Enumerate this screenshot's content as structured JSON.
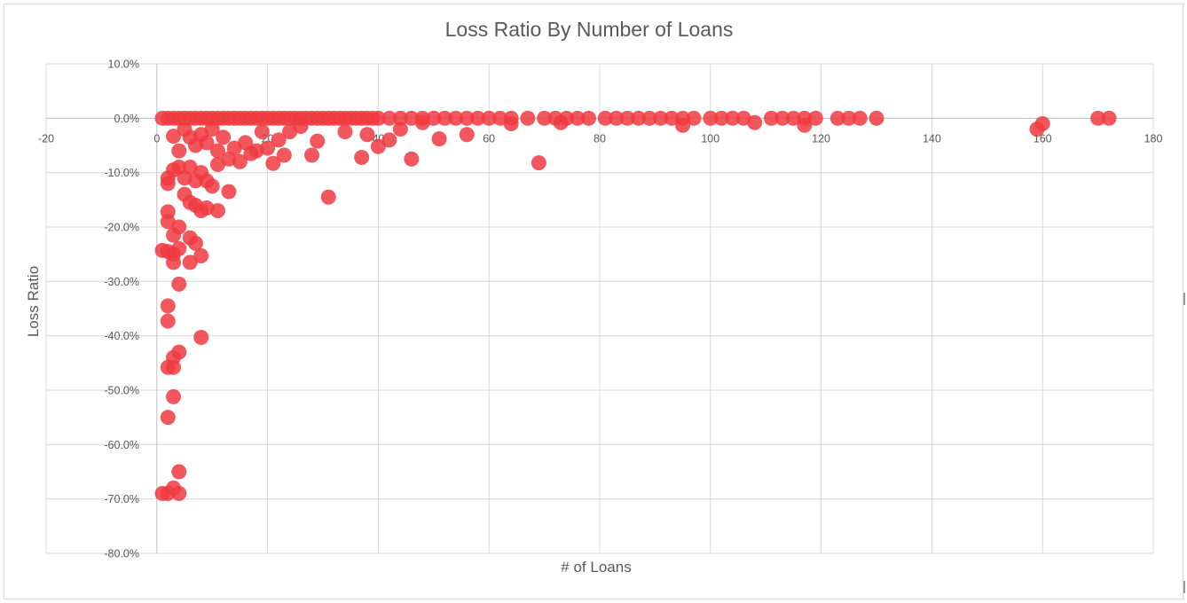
{
  "chart_data": {
    "type": "scatter",
    "title": "Loss Ratio By Number of Loans",
    "xlabel": "# of Loans",
    "ylabel": "Loss Ratio",
    "xlim": [
      -20,
      180
    ],
    "ylim": [
      -0.8,
      0.1
    ],
    "x_ticks": [
      "-20",
      "0",
      "20",
      "40",
      "60",
      "80",
      "100",
      "120",
      "140",
      "160",
      "180"
    ],
    "y_ticks": [
      "10.0%",
      "0.0%",
      "-10.0%",
      "-20.0%",
      "-30.0%",
      "-40.0%",
      "-50.0%",
      "-60.0%",
      "-70.0%",
      "-80.0%"
    ],
    "grid": true,
    "legend": "none",
    "marker_color": "#ee3a3f",
    "series": [
      {
        "points": [
          [
            1,
            0
          ],
          [
            2,
            0
          ],
          [
            3,
            0
          ],
          [
            4,
            0
          ],
          [
            5,
            0
          ],
          [
            6,
            0
          ],
          [
            7,
            0
          ],
          [
            8,
            0
          ],
          [
            9,
            0
          ],
          [
            10,
            0
          ],
          [
            11,
            0
          ],
          [
            12,
            0
          ],
          [
            13,
            0
          ],
          [
            14,
            0
          ],
          [
            15,
            0
          ],
          [
            16,
            0
          ],
          [
            17,
            0
          ],
          [
            18,
            0
          ],
          [
            19,
            0
          ],
          [
            20,
            0
          ],
          [
            21,
            0
          ],
          [
            22,
            0
          ],
          [
            23,
            0
          ],
          [
            24,
            0
          ],
          [
            25,
            0
          ],
          [
            26,
            0
          ],
          [
            27,
            0
          ],
          [
            28,
            0
          ],
          [
            29,
            0
          ],
          [
            30,
            0
          ],
          [
            31,
            0
          ],
          [
            32,
            0
          ],
          [
            33,
            0
          ],
          [
            34,
            0
          ],
          [
            35,
            0
          ],
          [
            36,
            0
          ],
          [
            37,
            0
          ],
          [
            38,
            0
          ],
          [
            39,
            0
          ],
          [
            40,
            0
          ],
          [
            42,
            0
          ],
          [
            44,
            0
          ],
          [
            46,
            0
          ],
          [
            48,
            0
          ],
          [
            50,
            0
          ],
          [
            52,
            0
          ],
          [
            54,
            0
          ],
          [
            56,
            0
          ],
          [
            58,
            0
          ],
          [
            60,
            0
          ],
          [
            62,
            0
          ],
          [
            64,
            0
          ],
          [
            67,
            0
          ],
          [
            70,
            0
          ],
          [
            72,
            0
          ],
          [
            74,
            0
          ],
          [
            76,
            0
          ],
          [
            78,
            0
          ],
          [
            81,
            0
          ],
          [
            83,
            0
          ],
          [
            85,
            0
          ],
          [
            87,
            0
          ],
          [
            89,
            0
          ],
          [
            91,
            0
          ],
          [
            93,
            0
          ],
          [
            95,
            0
          ],
          [
            97,
            0
          ],
          [
            100,
            0
          ],
          [
            102,
            0
          ],
          [
            104,
            0
          ],
          [
            106,
            0
          ],
          [
            111,
            0
          ],
          [
            113,
            0
          ],
          [
            115,
            0
          ],
          [
            117,
            0
          ],
          [
            119,
            0
          ],
          [
            123,
            0
          ],
          [
            125,
            0
          ],
          [
            127,
            0
          ],
          [
            130,
            0
          ],
          [
            170,
            0
          ],
          [
            172,
            0
          ],
          [
            3,
            -0.033
          ],
          [
            4,
            -0.06
          ],
          [
            5,
            -0.02
          ],
          [
            6,
            -0.035
          ],
          [
            7,
            -0.05
          ],
          [
            8,
            -0.03
          ],
          [
            9,
            -0.045
          ],
          [
            10,
            -0.02
          ],
          [
            11,
            -0.06
          ],
          [
            12,
            -0.035
          ],
          [
            13,
            -0.075
          ],
          [
            14,
            -0.055
          ],
          [
            15,
            -0.08
          ],
          [
            16,
            -0.045
          ],
          [
            17,
            -0.065
          ],
          [
            18,
            -0.06
          ],
          [
            19,
            -0.025
          ],
          [
            20,
            -0.055
          ],
          [
            21,
            -0.083
          ],
          [
            22,
            -0.04
          ],
          [
            23,
            -0.068
          ],
          [
            24,
            -0.025
          ],
          [
            26,
            -0.015
          ],
          [
            28,
            -0.068
          ],
          [
            29,
            -0.042
          ],
          [
            31,
            -0.145
          ],
          [
            34,
            -0.025
          ],
          [
            37,
            -0.072
          ],
          [
            38,
            -0.03
          ],
          [
            40,
            -0.052
          ],
          [
            42,
            -0.04
          ],
          [
            44,
            -0.02
          ],
          [
            46,
            -0.075
          ],
          [
            48,
            -0.008
          ],
          [
            51,
            -0.038
          ],
          [
            56,
            -0.03
          ],
          [
            64,
            -0.01
          ],
          [
            69,
            -0.082
          ],
          [
            73,
            -0.008
          ],
          [
            95,
            -0.013
          ],
          [
            108,
            -0.008
          ],
          [
            117,
            -0.013
          ],
          [
            159,
            -0.02
          ],
          [
            160,
            -0.01
          ],
          [
            2,
            -0.12
          ],
          [
            2,
            -0.11
          ],
          [
            3,
            -0.095
          ],
          [
            4,
            -0.09
          ],
          [
            5,
            -0.11
          ],
          [
            6,
            -0.09
          ],
          [
            7,
            -0.115
          ],
          [
            8,
            -0.1
          ],
          [
            9,
            -0.115
          ],
          [
            10,
            -0.125
          ],
          [
            11,
            -0.085
          ],
          [
            13,
            -0.135
          ],
          [
            5,
            -0.14
          ],
          [
            6,
            -0.155
          ],
          [
            7,
            -0.16
          ],
          [
            8,
            -0.17
          ],
          [
            9,
            -0.165
          ],
          [
            11,
            -0.17
          ],
          [
            2,
            -0.172
          ],
          [
            2,
            -0.19
          ],
          [
            4,
            -0.2
          ],
          [
            3,
            -0.215
          ],
          [
            6,
            -0.22
          ],
          [
            7,
            -0.23
          ],
          [
            1,
            -0.243
          ],
          [
            2,
            -0.245
          ],
          [
            3,
            -0.25
          ],
          [
            4,
            -0.24
          ],
          [
            3,
            -0.265
          ],
          [
            6,
            -0.265
          ],
          [
            8,
            -0.253
          ],
          [
            4,
            -0.305
          ],
          [
            2,
            -0.345
          ],
          [
            2,
            -0.373
          ],
          [
            8,
            -0.403
          ],
          [
            4,
            -0.43
          ],
          [
            3,
            -0.44
          ],
          [
            2,
            -0.458
          ],
          [
            3,
            -0.458
          ],
          [
            3,
            -0.512
          ],
          [
            2,
            -0.55
          ],
          [
            4,
            -0.65
          ],
          [
            1,
            -0.69
          ],
          [
            2,
            -0.69
          ],
          [
            3,
            -0.68
          ],
          [
            4,
            -0.69
          ]
        ]
      }
    ]
  }
}
